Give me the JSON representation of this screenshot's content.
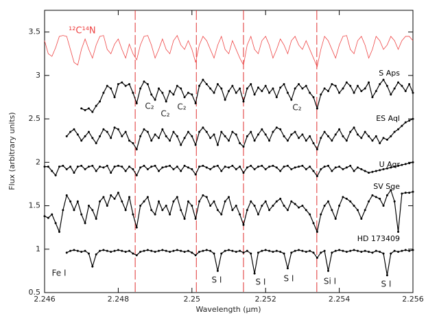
{
  "chart_data": {
    "type": "line",
    "xlabel": "Wavelength (μm)",
    "ylabel": "Flux (arbitrary units)",
    "xlim": [
      2.246,
      2.256
    ],
    "ylim": [
      0.5,
      3.75
    ],
    "xticks": [
      2.246,
      2.248,
      2.25,
      2.252,
      2.254,
      2.256
    ],
    "yticks": [
      0.5,
      1,
      1.5,
      2,
      2.5,
      3,
      3.5
    ],
    "vlines": [
      2.24846,
      2.25012,
      2.2514,
      2.25339
    ],
    "vline_color": "#e03030",
    "x": [
      2.246,
      2.2461,
      2.2462,
      2.2463,
      2.2464,
      2.2465,
      2.2466,
      2.2467,
      2.2468,
      2.2469,
      2.247,
      2.2471,
      2.2472,
      2.2473,
      2.2474,
      2.2475,
      2.2476,
      2.2477,
      2.2478,
      2.2479,
      2.248,
      2.2481,
      2.2482,
      2.2483,
      2.2484,
      2.2485,
      2.2486,
      2.2487,
      2.2488,
      2.2489,
      2.249,
      2.2491,
      2.2492,
      2.2493,
      2.2494,
      2.2495,
      2.2496,
      2.2497,
      2.2498,
      2.2499,
      2.25,
      2.2501,
      2.2502,
      2.2503,
      2.2504,
      2.2505,
      2.2506,
      2.2507,
      2.2508,
      2.2509,
      2.251,
      2.2511,
      2.2512,
      2.2513,
      2.2514,
      2.2515,
      2.2516,
      2.2517,
      2.2518,
      2.2519,
      2.252,
      2.2521,
      2.2522,
      2.2523,
      2.2524,
      2.2525,
      2.2526,
      2.2527,
      2.2528,
      2.2529,
      2.253,
      2.2531,
      2.2532,
      2.2533,
      2.2534,
      2.2535,
      2.2536,
      2.2537,
      2.2538,
      2.2539,
      2.254,
      2.2541,
      2.2542,
      2.2543,
      2.2544,
      2.2545,
      2.2546,
      2.2547,
      2.2548,
      2.2549,
      2.255,
      2.2551,
      2.2552,
      2.2553,
      2.2554,
      2.2555,
      2.2556,
      2.2557,
      2.2558,
      2.2559,
      2.256
    ],
    "series": [
      {
        "name": "¹²C¹⁴N",
        "color": "#ee4444",
        "marker": "none",
        "values": [
          3.4,
          3.25,
          3.22,
          3.32,
          3.45,
          3.46,
          3.45,
          3.3,
          3.15,
          3.12,
          3.3,
          3.42,
          3.3,
          3.2,
          3.35,
          3.45,
          3.46,
          3.3,
          3.25,
          3.36,
          3.42,
          3.3,
          3.2,
          3.36,
          3.25,
          3.18,
          3.35,
          3.45,
          3.46,
          3.35,
          3.2,
          3.3,
          3.42,
          3.3,
          3.25,
          3.4,
          3.46,
          3.35,
          3.3,
          3.4,
          3.3,
          3.15,
          3.35,
          3.45,
          3.4,
          3.3,
          3.2,
          3.35,
          3.45,
          3.3,
          3.25,
          3.4,
          3.3,
          3.2,
          3.12,
          3.35,
          3.45,
          3.3,
          3.25,
          3.4,
          3.45,
          3.35,
          3.2,
          3.3,
          3.42,
          3.35,
          3.25,
          3.4,
          3.45,
          3.35,
          3.3,
          3.4,
          3.3,
          3.2,
          3.1,
          3.3,
          3.45,
          3.4,
          3.3,
          3.2,
          3.35,
          3.45,
          3.46,
          3.3,
          3.25,
          3.4,
          3.45,
          3.35,
          3.2,
          3.3,
          3.45,
          3.4,
          3.3,
          3.35,
          3.45,
          3.4,
          3.3,
          3.4,
          3.45,
          3.45,
          3.4
        ]
      },
      {
        "name": "S Aps",
        "color": "#000000",
        "marker": "dot",
        "values": [
          null,
          null,
          null,
          null,
          null,
          null,
          null,
          null,
          null,
          null,
          2.62,
          2.6,
          2.62,
          2.58,
          2.65,
          2.7,
          2.8,
          2.88,
          2.85,
          2.75,
          2.9,
          2.92,
          2.88,
          2.9,
          2.8,
          2.68,
          2.85,
          2.93,
          2.9,
          2.78,
          2.72,
          2.85,
          2.8,
          2.7,
          2.82,
          2.78,
          2.88,
          2.85,
          2.75,
          2.8,
          2.78,
          2.68,
          2.88,
          2.95,
          2.9,
          2.85,
          2.8,
          2.9,
          2.85,
          2.72,
          2.82,
          2.88,
          2.8,
          2.85,
          2.7,
          2.85,
          2.9,
          2.78,
          2.86,
          2.82,
          2.88,
          2.8,
          2.85,
          2.75,
          2.86,
          2.9,
          2.8,
          2.72,
          2.85,
          2.9,
          2.85,
          2.88,
          2.8,
          2.75,
          2.62,
          2.78,
          2.85,
          2.82,
          2.9,
          2.88,
          2.8,
          2.85,
          2.92,
          2.88,
          2.8,
          2.88,
          2.82,
          2.85,
          2.92,
          2.75,
          2.82,
          2.9,
          2.95,
          2.88,
          2.78,
          2.85,
          2.92,
          2.88,
          2.82,
          2.9,
          2.8
        ]
      },
      {
        "name": "ES Aql",
        "color": "#000000",
        "marker": "dot",
        "values": [
          null,
          null,
          null,
          null,
          null,
          null,
          2.3,
          2.35,
          2.38,
          2.32,
          2.25,
          2.3,
          2.35,
          2.28,
          2.22,
          2.3,
          2.38,
          2.35,
          2.28,
          2.4,
          2.38,
          2.3,
          2.35,
          2.25,
          2.22,
          2.15,
          2.3,
          2.38,
          2.35,
          2.25,
          2.32,
          2.28,
          2.38,
          2.3,
          2.25,
          2.35,
          2.3,
          2.2,
          2.28,
          2.35,
          2.3,
          2.2,
          2.35,
          2.4,
          2.35,
          2.28,
          2.32,
          2.2,
          2.35,
          2.3,
          2.25,
          2.35,
          2.32,
          2.22,
          2.18,
          2.3,
          2.35,
          2.25,
          2.32,
          2.38,
          2.32,
          2.25,
          2.35,
          2.4,
          2.38,
          2.3,
          2.25,
          2.32,
          2.35,
          2.28,
          2.32,
          2.25,
          2.3,
          2.22,
          2.15,
          2.28,
          2.35,
          2.3,
          2.25,
          2.32,
          2.38,
          2.3,
          2.25,
          2.35,
          2.4,
          2.32,
          2.28,
          2.35,
          2.3,
          2.25,
          2.3,
          2.22,
          2.28,
          2.26,
          2.3,
          2.35,
          2.38,
          2.42,
          2.46,
          2.48,
          2.5
        ]
      },
      {
        "name": "U Aqr",
        "color": "#000000",
        "marker": "dot",
        "values": [
          1.95,
          1.95,
          1.9,
          1.85,
          1.95,
          1.96,
          1.92,
          1.95,
          1.88,
          1.95,
          1.96,
          1.92,
          1.95,
          1.96,
          1.9,
          1.95,
          1.94,
          1.96,
          1.88,
          1.95,
          1.96,
          1.95,
          1.9,
          1.95,
          1.92,
          1.85,
          1.94,
          1.96,
          1.92,
          1.95,
          1.96,
          1.9,
          1.94,
          1.95,
          1.96,
          1.92,
          1.95,
          1.9,
          1.96,
          1.94,
          1.92,
          1.86,
          1.95,
          1.96,
          1.94,
          1.92,
          1.95,
          1.96,
          1.9,
          1.95,
          1.94,
          1.96,
          1.92,
          1.95,
          1.88,
          1.94,
          1.96,
          1.92,
          1.95,
          1.96,
          1.92,
          1.95,
          1.96,
          1.94,
          1.9,
          1.95,
          1.96,
          1.92,
          1.94,
          1.95,
          1.96,
          1.92,
          1.95,
          1.9,
          1.84,
          1.92,
          1.95,
          1.96,
          1.9,
          1.94,
          1.95,
          1.92,
          1.94,
          1.96,
          1.9,
          1.94,
          1.92,
          1.9,
          1.88,
          1.89,
          1.9,
          1.91,
          1.92,
          1.93,
          1.94,
          1.95,
          1.96,
          1.97,
          1.98,
          1.99,
          2.0
        ]
      },
      {
        "name": "SV Sge",
        "color": "#000000",
        "marker": "dot",
        "values": [
          1.38,
          1.36,
          1.4,
          1.3,
          1.2,
          1.45,
          1.62,
          1.55,
          1.45,
          1.55,
          1.4,
          1.3,
          1.5,
          1.45,
          1.35,
          1.55,
          1.6,
          1.5,
          1.62,
          1.58,
          1.65,
          1.55,
          1.45,
          1.6,
          1.4,
          1.25,
          1.5,
          1.55,
          1.6,
          1.45,
          1.4,
          1.55,
          1.45,
          1.5,
          1.4,
          1.55,
          1.6,
          1.45,
          1.35,
          1.55,
          1.5,
          1.35,
          1.55,
          1.62,
          1.6,
          1.5,
          1.55,
          1.45,
          1.4,
          1.55,
          1.6,
          1.45,
          1.5,
          1.4,
          1.28,
          1.45,
          1.55,
          1.5,
          1.4,
          1.5,
          1.55,
          1.45,
          1.5,
          1.55,
          1.58,
          1.5,
          1.45,
          1.55,
          1.52,
          1.48,
          1.5,
          1.45,
          1.4,
          1.3,
          1.2,
          1.4,
          1.5,
          1.55,
          1.45,
          1.35,
          1.5,
          1.6,
          1.58,
          1.55,
          1.5,
          1.45,
          1.35,
          1.45,
          1.55,
          1.62,
          1.6,
          1.58,
          1.5,
          1.62,
          1.68,
          1.55,
          1.2,
          1.64,
          1.65,
          1.65,
          1.66
        ]
      },
      {
        "name": "HD 173409",
        "color": "#000000",
        "marker": "dot",
        "values": [
          null,
          null,
          null,
          null,
          null,
          null,
          0.96,
          0.98,
          0.99,
          0.98,
          0.97,
          0.98,
          0.95,
          0.8,
          0.94,
          0.98,
          0.99,
          0.98,
          0.97,
          0.98,
          0.99,
          0.98,
          0.97,
          0.98,
          0.95,
          0.93,
          0.97,
          0.98,
          0.99,
          0.98,
          0.97,
          0.98,
          0.99,
          0.98,
          0.97,
          0.98,
          0.99,
          0.98,
          0.97,
          0.98,
          0.96,
          0.93,
          0.97,
          0.98,
          0.99,
          0.98,
          0.95,
          0.75,
          0.95,
          0.98,
          0.99,
          0.98,
          0.97,
          0.98,
          0.96,
          0.98,
          0.95,
          0.72,
          0.96,
          0.98,
          0.99,
          0.98,
          0.97,
          0.98,
          0.97,
          0.95,
          0.78,
          0.96,
          0.98,
          0.99,
          0.98,
          0.97,
          0.98,
          0.96,
          0.9,
          0.96,
          0.98,
          0.75,
          0.96,
          0.98,
          0.99,
          0.98,
          0.97,
          0.98,
          0.99,
          0.98,
          0.97,
          0.98,
          0.97,
          0.96,
          0.98,
          0.97,
          0.95,
          0.7,
          0.95,
          0.98,
          0.97,
          0.98,
          0.99,
          0.98,
          0.99
        ]
      }
    ],
    "band_labels": [
      "C₂",
      "C₂",
      "C₂",
      "C₂"
    ],
    "line_labels": [
      "Fe I",
      "S I",
      "S I",
      "S I",
      "Si I",
      "S I"
    ]
  }
}
